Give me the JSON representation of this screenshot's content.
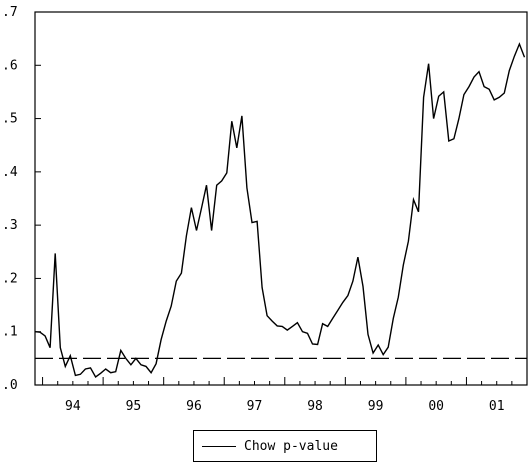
{
  "chart_data": {
    "type": "line",
    "title": "",
    "xlabel": "",
    "ylabel": "",
    "ylim": [
      0.0,
      0.7
    ],
    "xlim": [
      1993.875,
      2002.0
    ],
    "y_ticks": [
      0.0,
      0.1,
      0.2,
      0.3,
      0.4,
      0.5,
      0.6,
      0.7
    ],
    "y_tick_labels": [
      ".0",
      ".1",
      ".2",
      ".3",
      ".4",
      ".5",
      ".6",
      ".7"
    ],
    "x_tick_labels": [
      "94",
      "95",
      "96",
      "97",
      "98",
      "99",
      "00",
      "01"
    ],
    "x_tick_positions": [
      1994.5,
      1995.5,
      1996.5,
      1997.5,
      1998.5,
      1999.5,
      2000.5,
      2001.5
    ],
    "grid": false,
    "legend_position": "bottom-center",
    "reference_line": {
      "y": 0.05,
      "style": "dashed"
    },
    "series": [
      {
        "name": "Chow p-value",
        "color": "#000000",
        "x": [
          1993.875,
          1993.958,
          1994.042,
          1994.125,
          1994.208,
          1994.292,
          1994.375,
          1994.458,
          1994.542,
          1994.625,
          1994.708,
          1994.792,
          1994.875,
          1994.958,
          1995.042,
          1995.125,
          1995.208,
          1995.292,
          1995.375,
          1995.458,
          1995.542,
          1995.625,
          1995.708,
          1995.792,
          1995.875,
          1995.958,
          1996.042,
          1996.125,
          1996.208,
          1996.292,
          1996.375,
          1996.458,
          1996.542,
          1996.625,
          1996.708,
          1996.792,
          1996.875,
          1996.958,
          1997.042,
          1997.125,
          1997.208,
          1997.292,
          1997.375,
          1997.458,
          1997.542,
          1997.625,
          1997.708,
          1997.792,
          1997.875,
          1997.958,
          1998.042,
          1998.125,
          1998.208,
          1998.292,
          1998.375,
          1998.458,
          1998.542,
          1998.625,
          1998.708,
          1998.792,
          1998.875,
          1998.958,
          1999.042,
          1999.125,
          1999.208,
          1999.292,
          1999.375,
          1999.458,
          1999.542,
          1999.625,
          1999.708,
          1999.792,
          1999.875,
          1999.958,
          2000.042,
          2000.125,
          2000.208,
          2000.292,
          2000.375,
          2000.458,
          2000.542,
          2000.625,
          2000.708,
          2000.792,
          2000.875,
          2000.958,
          2001.042,
          2001.125,
          2001.208,
          2001.292,
          2001.375,
          2001.458,
          2001.542,
          2001.625,
          2001.708,
          2001.792,
          2001.875,
          2001.958
        ],
        "values": [
          0.1,
          0.099,
          0.092,
          0.07,
          0.247,
          0.07,
          0.035,
          0.055,
          0.018,
          0.02,
          0.03,
          0.032,
          0.015,
          0.022,
          0.03,
          0.023,
          0.025,
          0.065,
          0.05,
          0.038,
          0.05,
          0.038,
          0.035,
          0.023,
          0.04,
          0.085,
          0.12,
          0.148,
          0.195,
          0.21,
          0.28,
          0.333,
          0.29,
          0.332,
          0.375,
          0.29,
          0.375,
          0.383,
          0.398,
          0.495,
          0.445,
          0.505,
          0.37,
          0.305,
          0.307,
          0.183,
          0.13,
          0.12,
          0.111,
          0.11,
          0.103,
          0.11,
          0.117,
          0.1,
          0.097,
          0.077,
          0.076,
          0.115,
          0.11,
          0.125,
          0.14,
          0.155,
          0.168,
          0.195,
          0.24,
          0.185,
          0.095,
          0.06,
          0.075,
          0.057,
          0.071,
          0.125,
          0.165,
          0.225,
          0.27,
          0.348,
          0.325,
          0.54,
          0.603,
          0.5,
          0.542,
          0.55,
          0.458,
          0.462,
          0.5,
          0.545,
          0.56,
          0.578,
          0.588,
          0.56,
          0.555,
          0.535,
          0.54,
          0.548,
          0.59,
          0.617,
          0.64,
          0.615
        ]
      }
    ]
  }
}
